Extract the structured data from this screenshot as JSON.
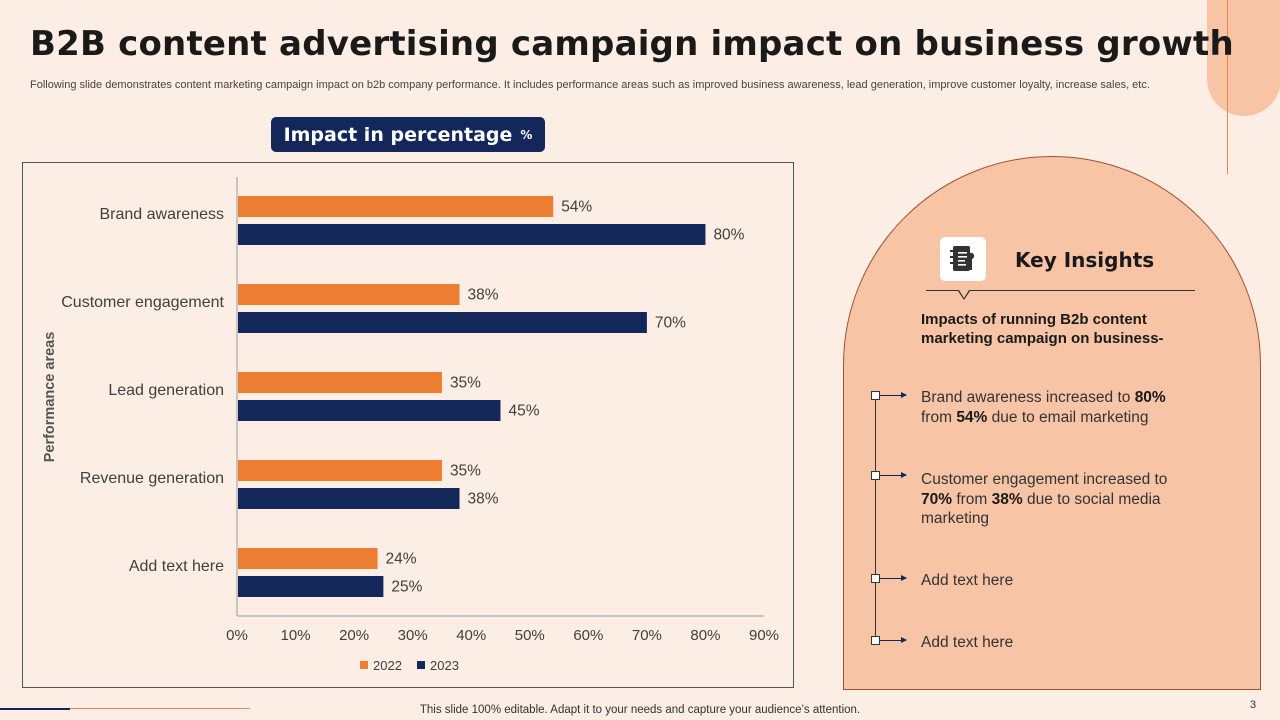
{
  "slide": {
    "title": "B2B content advertising campaign impact on business growth",
    "subtitle": "Following slide demonstrates content marketing campaign impact on b2b company performance. It includes performance areas such as improved business awareness, lead generation, improve customer loyalty, increase sales, etc.",
    "footer": "This slide 100% editable. Adapt it to your needs and capture your audience’s attention.",
    "page_number": "3"
  },
  "chart_header": {
    "label": "Impact in percentage",
    "unit": "%"
  },
  "chart_data": {
    "type": "bar",
    "orientation": "horizontal",
    "title": "Impact in percentage %",
    "ylabel": "Performance areas",
    "xlabel": "",
    "categories": [
      "Brand awareness",
      "Customer engagement",
      "Lead generation",
      "Revenue generation",
      "Add text here"
    ],
    "series": [
      {
        "name": "2022",
        "color": "#ED7D31",
        "values": [
          54,
          38,
          35,
          35,
          24
        ]
      },
      {
        "name": "2023",
        "color": "#14275A",
        "values": [
          80,
          70,
          45,
          38,
          25
        ]
      }
    ],
    "xlim": [
      0,
      90
    ],
    "xticks": [
      0,
      10,
      20,
      30,
      40,
      50,
      60,
      70,
      80,
      90
    ],
    "tick_suffix": "%",
    "value_suffix": "%",
    "legend_position": "bottom"
  },
  "insights": {
    "title": "Key Insights",
    "icon": "notebook-icon",
    "lead": "Impacts of running B2b content marketing campaign on business-",
    "items": [
      {
        "pre": "Brand awareness increased to ",
        "b1": "80%",
        "mid": " from ",
        "b2": "54%",
        "post": " due to email marketing"
      },
      {
        "pre": "Customer engagement increased to ",
        "b1": "70%",
        "mid": " from ",
        "b2": "38%",
        "post": " due to social media marketing"
      },
      {
        "text": "Add text here"
      },
      {
        "text": "Add text here"
      }
    ]
  },
  "colors": {
    "accent_orange": "#ED7D31",
    "accent_navy": "#14275A",
    "background": "#FCEDE5",
    "panel": "#F7C4A6"
  }
}
